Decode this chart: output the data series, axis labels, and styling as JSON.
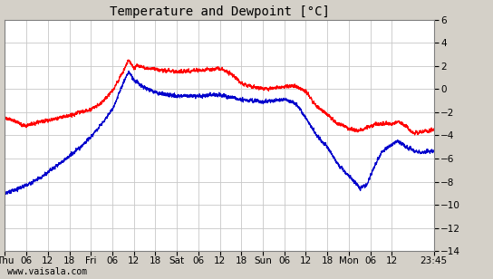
{
  "title": "Temperature and Dewpoint [°C]",
  "ylim": [
    -14,
    6
  ],
  "yticks": [
    -14,
    -12,
    -10,
    -8,
    -6,
    -4,
    -2,
    0,
    2,
    4,
    6
  ],
  "x_tick_labels": [
    "Thu",
    "06",
    "12",
    "18",
    "Fri",
    "06",
    "12",
    "18",
    "Sat",
    "06",
    "12",
    "18",
    "Sun",
    "06",
    "12",
    "18",
    "Mon",
    "06",
    "12",
    "23:45"
  ],
  "x_tick_positions": [
    0,
    6,
    12,
    18,
    24,
    30,
    36,
    42,
    48,
    54,
    60,
    66,
    72,
    78,
    84,
    90,
    96,
    102,
    108,
    119.75
  ],
  "watermark": "www.vaisala.com",
  "background_color": "#d4d0c8",
  "plot_bg_color": "#ffffff",
  "grid_color": "#c8c8c8",
  "temp_color": "#ff0000",
  "dewpoint_color": "#0000cc",
  "line_width": 0.8,
  "title_fontsize": 10,
  "tick_fontsize": 7.5,
  "watermark_fontsize": 7
}
